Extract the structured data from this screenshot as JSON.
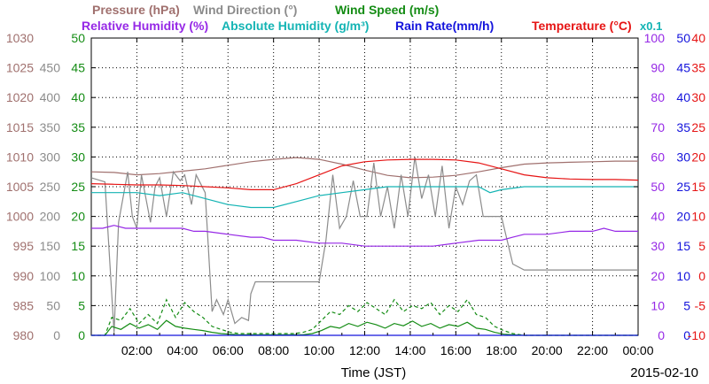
{
  "chart_data": {
    "type": "line",
    "xlabel": "Time (JST)",
    "date_label": "2015-02-10",
    "x_ticks": [
      "02:00",
      "04:00",
      "06:00",
      "08:00",
      "10:00",
      "12:00",
      "14:00",
      "16:00",
      "18:00",
      "20:00",
      "22:00",
      "00:00"
    ],
    "x_range_hours": [
      0,
      24
    ],
    "legend": {
      "row1": [
        {
          "key": "pressure",
          "label": "Pressure (hPa)",
          "color": "#a0706e"
        },
        {
          "key": "wind_direction",
          "label": "Wind Direction (°)",
          "color": "#8c8c8c"
        },
        {
          "key": "wind_speed",
          "label": "Wind Speed (m/s)",
          "color": "#148c14"
        }
      ],
      "row2": [
        {
          "key": "relative_humidity",
          "label": "Relative Humidity (%)",
          "color": "#9628e6"
        },
        {
          "key": "absolute_humidity",
          "label": "Absolute Humidity (g/m³)",
          "color": "#14b4b4"
        },
        {
          "key": "rain_rate",
          "label": "Rain Rate(mm/h)",
          "color": "#1414dc"
        },
        {
          "key": "temperature",
          "label": "Temperature (°C)",
          "color": "#e61414"
        }
      ],
      "abs_humidity_note": "x0.1"
    },
    "axes": {
      "pressure": {
        "ticks": [
          "1030",
          "1025",
          "1020",
          "1015",
          "1010",
          "1005",
          "1000",
          "995",
          "990",
          "985",
          "980"
        ],
        "range": [
          980,
          1030
        ],
        "color": "#a0706e"
      },
      "wind_direction": {
        "ticks": [
          "450",
          "400",
          "350",
          "300",
          "250",
          "200",
          "150",
          "100",
          "50",
          "0"
        ],
        "range": [
          0,
          500
        ],
        "color": "#8c8c8c"
      },
      "wind_speed": {
        "ticks": [
          "50",
          "45",
          "40",
          "35",
          "30",
          "25",
          "20",
          "15",
          "10",
          "5",
          "0"
        ],
        "range": [
          0,
          50
        ],
        "color": "#148c14"
      },
      "relative_humidity": {
        "ticks": [
          "100",
          "90",
          "80",
          "70",
          "60",
          "50",
          "40",
          "30",
          "20",
          "10",
          "0"
        ],
        "range": [
          0,
          100
        ],
        "color": "#9628e6"
      },
      "rain_rate": {
        "ticks": [
          "50",
          "45",
          "40",
          "35",
          "30",
          "25",
          "20",
          "15",
          "10",
          "5",
          "0"
        ],
        "range": [
          0,
          50
        ],
        "color": "#1414dc"
      },
      "temperature": {
        "ticks": [
          "40",
          "35",
          "30",
          "25",
          "20",
          "15",
          "10",
          "5",
          "0",
          "-5",
          "-10"
        ],
        "range": [
          -10,
          40
        ],
        "color": "#e61414"
      }
    },
    "series": [
      {
        "name": "Pressure (hPa)",
        "axis": "pressure",
        "style": "solid",
        "x": [
          0,
          1,
          2,
          3,
          4,
          5,
          6,
          7,
          8,
          9,
          10,
          11,
          12,
          13,
          14,
          15,
          16,
          17,
          18,
          19,
          20,
          21,
          22,
          23,
          24
        ],
        "y": [
          1007.5,
          1007.4,
          1007.0,
          1007.2,
          1007.6,
          1008.0,
          1008.6,
          1009.2,
          1009.6,
          1009.9,
          1009.6,
          1008.8,
          1007.8,
          1006.9,
          1006.5,
          1006.6,
          1006.9,
          1007.5,
          1008.2,
          1008.8,
          1009.0,
          1009.1,
          1009.2,
          1009.3,
          1009.3
        ]
      },
      {
        "name": "Wind Direction (°)",
        "axis": "wind_direction",
        "style": "solid",
        "x": [
          0,
          0.6,
          1.0,
          1.2,
          1.6,
          1.8,
          2.0,
          2.2,
          2.6,
          2.8,
          3.0,
          3.3,
          3.6,
          3.9,
          4.1,
          4.4,
          4.6,
          5.0,
          5.3,
          5.5,
          5.8,
          6.0,
          6.3,
          6.6,
          6.9,
          7.0,
          7.2,
          8.0,
          9.0,
          9.9,
          10.0,
          10.3,
          10.6,
          10.9,
          11.2,
          11.5,
          11.8,
          12.1,
          12.4,
          12.7,
          13.0,
          13.3,
          13.6,
          13.9,
          14.2,
          14.5,
          14.8,
          15.1,
          15.4,
          15.7,
          16.0,
          16.3,
          16.6,
          16.9,
          17.2,
          17.5,
          17.8,
          18.0,
          18.5,
          19,
          20,
          21,
          22,
          23,
          24
        ],
        "y": [
          265,
          258,
          5,
          190,
          275,
          200,
          180,
          270,
          190,
          250,
          265,
          200,
          275,
          260,
          270,
          220,
          270,
          240,
          40,
          60,
          35,
          60,
          20,
          30,
          25,
          70,
          90,
          90,
          90,
          90,
          90,
          160,
          270,
          180,
          200,
          260,
          200,
          200,
          290,
          200,
          250,
          180,
          270,
          200,
          300,
          230,
          270,
          200,
          285,
          180,
          250,
          220,
          260,
          270,
          200,
          200,
          200,
          200,
          120,
          110,
          110,
          110,
          110,
          110,
          110
        ]
      },
      {
        "name": "Wind Speed (m/s)",
        "axis": "wind_speed",
        "style": "solid",
        "x": [
          0,
          0.6,
          0.9,
          1.3,
          1.7,
          2.1,
          2.5,
          2.9,
          3.3,
          3.7,
          4.1,
          4.5,
          4.9,
          5.3,
          5.7,
          6.1,
          6.5,
          6.9,
          7.3,
          7.7,
          8.1,
          8.5,
          8.9,
          9.3,
          9.7,
          10.1,
          10.5,
          10.9,
          11.3,
          11.7,
          12.1,
          12.5,
          12.9,
          13.3,
          13.7,
          14.1,
          14.5,
          14.9,
          15.3,
          15.7,
          16.1,
          16.5,
          16.9,
          17.3,
          17.7,
          18.1,
          18.5,
          19,
          20,
          21,
          22,
          23,
          24
        ],
        "y": [
          0,
          0,
          1.5,
          1.0,
          2.0,
          1.2,
          1.8,
          1.0,
          2.5,
          1.5,
          1.2,
          1.0,
          0.8,
          0.5,
          0.3,
          0.2,
          0.1,
          0.1,
          0.1,
          0.1,
          0.1,
          0.1,
          0.1,
          0.1,
          0.3,
          0.8,
          1.5,
          1.2,
          2.0,
          1.5,
          2.2,
          1.8,
          1.2,
          2.0,
          1.6,
          2.4,
          1.5,
          2.0,
          1.2,
          1.8,
          1.5,
          2.2,
          1.2,
          1.0,
          0.5,
          0.2,
          0.1,
          0,
          0,
          0,
          0,
          0,
          0
        ]
      },
      {
        "name": "Wind Speed (m/s) gust",
        "axis": "wind_speed",
        "style": "dashed",
        "x": [
          0,
          0.6,
          0.9,
          1.3,
          1.7,
          2.1,
          2.5,
          2.9,
          3.3,
          3.7,
          4.1,
          4.5,
          4.9,
          5.3,
          5.7,
          6.1,
          6.5,
          6.9,
          7.3,
          7.7,
          8.1,
          8.5,
          8.9,
          9.3,
          9.7,
          10.1,
          10.5,
          10.9,
          11.3,
          11.7,
          12.1,
          12.5,
          12.9,
          13.3,
          13.7,
          14.1,
          14.5,
          14.9,
          15.3,
          15.7,
          16.1,
          16.5,
          16.9,
          17.3,
          17.7,
          18.1,
          18.5,
          19,
          20,
          21,
          22,
          23,
          24
        ],
        "y": [
          0,
          0,
          3,
          2.5,
          4.5,
          2.0,
          3.5,
          2.0,
          6.0,
          3.0,
          5.5,
          4.0,
          3.0,
          1.5,
          1.0,
          0.5,
          0.3,
          0.3,
          0.3,
          0.3,
          0.3,
          0.3,
          0.3,
          0.5,
          1.0,
          2.5,
          4.0,
          3.5,
          5.0,
          4.0,
          5.5,
          4.5,
          3.5,
          6.0,
          4.0,
          5.0,
          4.5,
          5.5,
          3.5,
          5.0,
          4.0,
          6.0,
          3.5,
          3.0,
          1.5,
          0.8,
          0.3,
          0,
          0,
          0,
          0,
          0,
          0
        ]
      },
      {
        "name": "Relative Humidity (%)",
        "axis": "relative_humidity",
        "style": "solid",
        "x": [
          0,
          0.5,
          1.0,
          1.5,
          2.0,
          3.0,
          4.0,
          4.5,
          5.0,
          6.0,
          7.0,
          7.5,
          8.0,
          9.0,
          10.0,
          11.0,
          12.0,
          13.0,
          14.0,
          15.0,
          16.0,
          17.0,
          17.5,
          18.0,
          18.5,
          19.0,
          20.0,
          21.0,
          22.0,
          22.5,
          23.0,
          24.0
        ],
        "y": [
          36,
          36,
          37,
          36,
          36,
          36,
          36,
          35,
          35,
          34,
          33,
          33,
          32,
          32,
          31,
          31,
          30,
          30,
          30,
          30,
          31,
          32,
          32,
          32,
          33,
          34,
          34,
          35,
          35,
          36,
          35,
          35
        ]
      },
      {
        "name": "Absolute Humidity (g/m³)",
        "axis": "wind_speed",
        "style": "solid",
        "x": [
          0,
          1,
          2,
          3,
          4,
          5,
          6,
          7,
          8,
          9,
          10,
          11,
          12,
          13,
          14,
          15,
          16,
          17,
          17.5,
          18,
          19,
          20,
          21,
          22,
          23,
          24
        ],
        "y": [
          24,
          24,
          24,
          23.5,
          24,
          23,
          22,
          21.5,
          21.5,
          22.5,
          23.5,
          24.0,
          24.5,
          25.0,
          25.0,
          25.0,
          25.0,
          25.0,
          24,
          24.5,
          25.0,
          25.0,
          25.0,
          25.0,
          25.0,
          25.0
        ]
      },
      {
        "name": "Rain Rate(mm/h)",
        "axis": "rain_rate",
        "style": "solid",
        "x": [
          0,
          24
        ],
        "y": [
          0,
          0
        ]
      },
      {
        "name": "Temperature (°C)",
        "axis": "temperature",
        "style": "solid",
        "x": [
          0,
          1,
          2,
          3,
          4,
          5,
          6,
          7,
          8,
          9,
          10,
          11,
          12,
          13,
          14,
          15,
          16,
          17,
          18,
          19,
          20,
          21,
          22,
          23,
          24
        ],
        "y": [
          15.5,
          15.4,
          15.3,
          15.3,
          15.2,
          15.0,
          14.8,
          14.5,
          14.5,
          15.5,
          17.0,
          18.5,
          19.2,
          19.5,
          19.6,
          19.6,
          19.5,
          19.0,
          18.0,
          17.0,
          16.5,
          16.3,
          16.2,
          16.2,
          16.1
        ]
      }
    ]
  }
}
